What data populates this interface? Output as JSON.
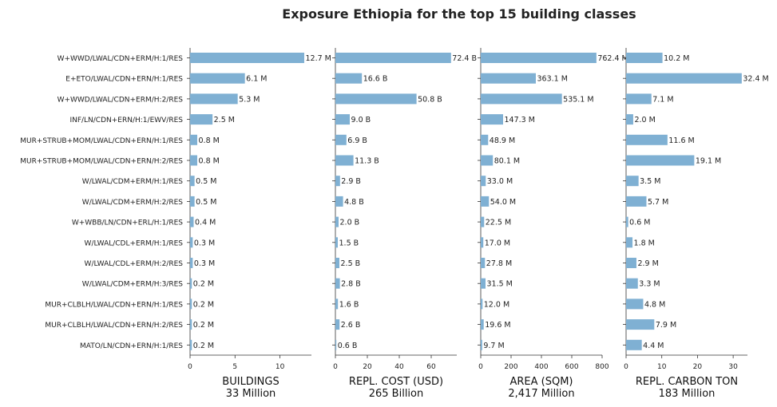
{
  "title": "Exposure Ethiopia for the top 15 building classes",
  "chart_data": [
    {
      "type": "bar",
      "orientation": "horizontal",
      "xlabel": "BUILDINGS",
      "xlabel_sub": "33 Million",
      "xlim": [
        0,
        13.5
      ],
      "xticks": [
        0,
        5,
        10
      ],
      "categories": [
        "W+WWD/LWAL/CDN+ERM/H:1/RES",
        "E+ETO/LWAL/CDN+ERN/H:1/RES",
        "W+WWD/LWAL/CDN+ERM/H:2/RES",
        "INF/LN/CDN+ERN/H:1/EWV/RES",
        "MUR+STRUB+MOM/LWAL/CDN+ERN/H:1/RES",
        "MUR+STRUB+MOM/LWAL/CDN+ERN/H:2/RES",
        "W/LWAL/CDM+ERM/H:1/RES",
        "W/LWAL/CDM+ERM/H:2/RES",
        "W+WBB/LN/CDN+ERL/H:1/RES",
        "W/LWAL/CDL+ERM/H:1/RES",
        "W/LWAL/CDL+ERM/H:2/RES",
        "W/LWAL/CDM+ERM/H:3/RES",
        "MUR+CLBLH/LWAL/CDN+ERN/H:1/RES",
        "MUR+CLBLH/LWAL/CDN+ERN/H:2/RES",
        "MATO/LN/CDN+ERN/H:1/RES"
      ],
      "values": [
        12.7,
        6.1,
        5.3,
        2.5,
        0.8,
        0.8,
        0.5,
        0.5,
        0.4,
        0.3,
        0.3,
        0.2,
        0.2,
        0.2,
        0.2
      ],
      "labels": [
        "12.7 M",
        "6.1 M",
        "5.3 M",
        "2.5 M",
        "0.8 M",
        "0.8 M",
        "0.5 M",
        "0.5 M",
        "0.4 M",
        "0.3 M",
        "0.3 M",
        "0.2 M",
        "0.2 M",
        "0.2 M",
        "0.2 M"
      ]
    },
    {
      "type": "bar",
      "orientation": "horizontal",
      "xlabel": "REPL. COST (USD)",
      "xlabel_sub": "265 Billion",
      "xlim": [
        0,
        76
      ],
      "xticks": [
        0,
        20,
        40,
        60
      ],
      "values": [
        72.4,
        16.6,
        50.8,
        9.0,
        6.9,
        11.3,
        2.9,
        4.8,
        2.0,
        1.5,
        2.5,
        2.8,
        1.6,
        2.6,
        0.6
      ],
      "labels": [
        "72.4 B",
        "16.6 B",
        "50.8 B",
        "9.0 B",
        "6.9 B",
        "11.3 B",
        "2.9 B",
        "4.8 B",
        "2.0 B",
        "1.5 B",
        "2.5 B",
        "2.8 B",
        "1.6 B",
        "2.6 B",
        "0.6 B"
      ]
    },
    {
      "type": "bar",
      "orientation": "horizontal",
      "xlabel": "AREA (SQM)",
      "xlabel_sub": "2,417 Million",
      "xlim": [
        0,
        800
      ],
      "xticks": [
        0,
        200,
        400,
        600,
        800
      ],
      "values": [
        762.4,
        363.1,
        535.1,
        147.3,
        48.9,
        80.1,
        33.0,
        54.0,
        22.5,
        17.0,
        27.8,
        31.5,
        12.0,
        19.6,
        9.7
      ],
      "labels": [
        "762.4 M",
        "363.1 M",
        "535.1 M",
        "147.3 M",
        "48.9 M",
        "80.1 M",
        "33.0 M",
        "54.0 M",
        "22.5 M",
        "17.0 M",
        "27.8 M",
        "31.5 M",
        "12.0 M",
        "19.6 M",
        "9.7 M"
      ]
    },
    {
      "type": "bar",
      "orientation": "horizontal",
      "xlabel": "REPL. CARBON TON",
      "xlabel_sub": "183 Million",
      "xlim": [
        0,
        34
      ],
      "xticks": [
        0,
        10,
        20,
        30
      ],
      "values": [
        10.2,
        32.4,
        7.1,
        2.0,
        11.6,
        19.1,
        3.5,
        5.7,
        0.6,
        1.8,
        2.9,
        3.3,
        4.8,
        7.9,
        4.4
      ],
      "labels": [
        "10.2 M",
        "32.4 M",
        "7.1 M",
        "2.0 M",
        "11.6 M",
        "19.1 M",
        "3.5 M",
        "5.7 M",
        "0.6 M",
        "1.8 M",
        "2.9 M",
        "3.3 M",
        "4.8 M",
        "7.9 M",
        "4.4 M"
      ]
    }
  ],
  "bar_color": "#7fb0d3"
}
